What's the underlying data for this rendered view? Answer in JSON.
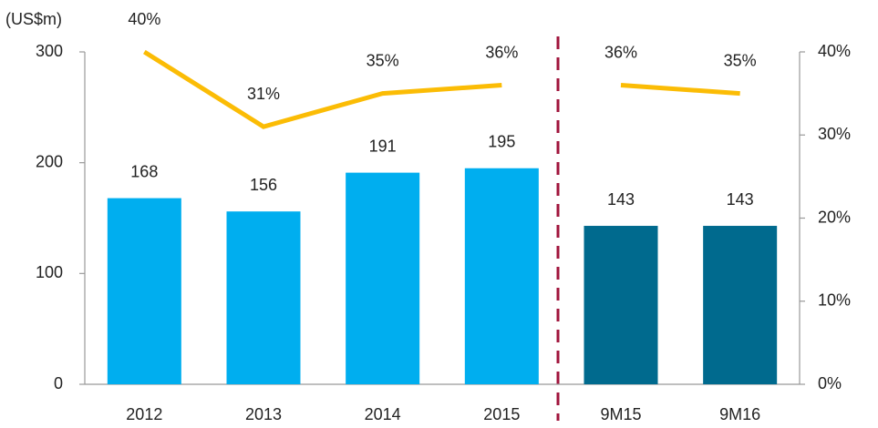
{
  "chart_data": {
    "type": "bar",
    "y_label": "(US$m)",
    "categories": [
      "2012",
      "2013",
      "2014",
      "2015",
      "9M15",
      "9M16"
    ],
    "values": [
      168,
      156,
      191,
      195,
      143,
      143
    ],
    "colors": [
      "#00aeef",
      "#00aeef",
      "#00aeef",
      "#00aeef",
      "#006a8e",
      "#006a8e"
    ],
    "ylim": [
      0,
      300
    ],
    "yticks": [
      0,
      100,
      200,
      300
    ],
    "y2lim": [
      0,
      40
    ],
    "y2ticks": [
      {
        "value": 0,
        "label": "0%"
      },
      {
        "value": 10,
        "label": "10%"
      },
      {
        "value": 20,
        "label": "20%"
      },
      {
        "value": 30,
        "label": "30%"
      },
      {
        "value": 40,
        "label": "40%"
      }
    ],
    "line_series": [
      {
        "color": "#fbbc05",
        "axis": "y2",
        "values": [
          40,
          31,
          35,
          36,
          null,
          null
        ],
        "value_labels": [
          "40%",
          "31%",
          "35%",
          "36%",
          null,
          null
        ]
      },
      {
        "color": "#fbbc05",
        "axis": "y2",
        "values": [
          null,
          null,
          null,
          null,
          36,
          35
        ],
        "value_labels": [
          null,
          null,
          null,
          null,
          "36%",
          "35%"
        ]
      }
    ]
  }
}
